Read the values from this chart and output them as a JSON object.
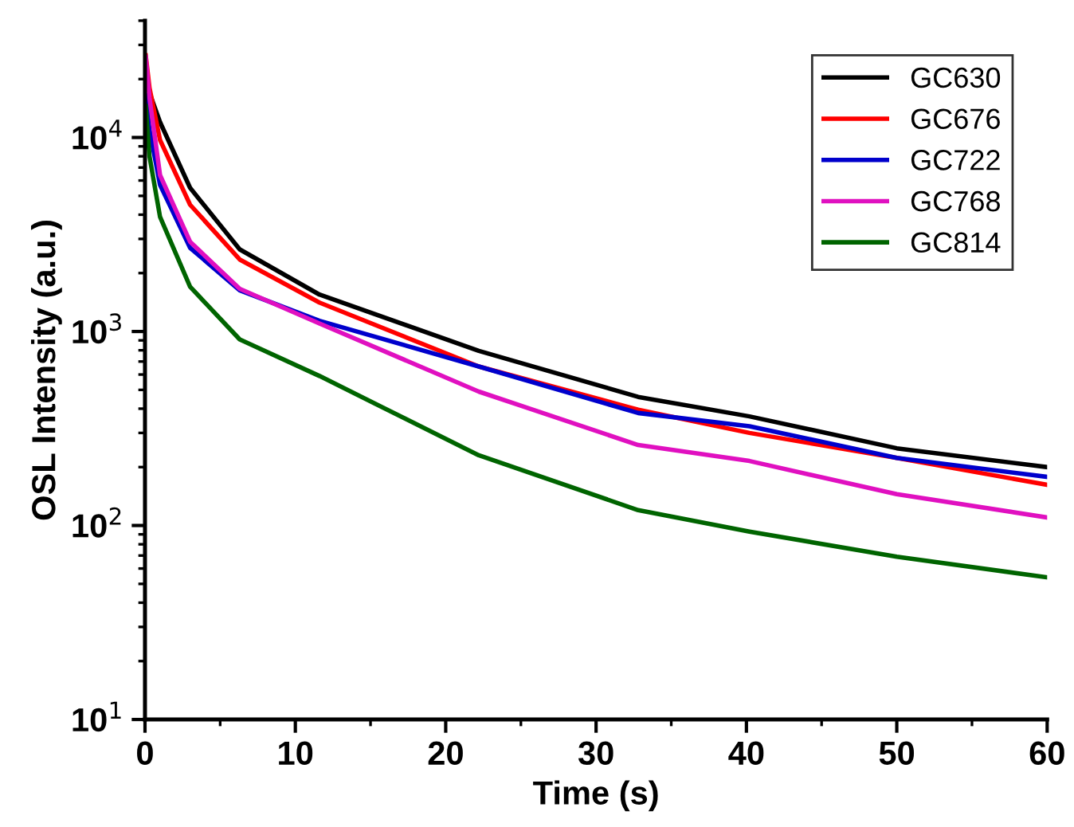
{
  "chart_data": {
    "type": "line",
    "xlabel": "Time (s)",
    "ylabel": "OSL Intensity (a.u.)",
    "log": "y",
    "x": [
      0.05,
      0.3,
      1,
      3,
      6.3,
      11.6,
      22.2,
      32.8,
      40.2,
      50,
      60
    ],
    "xlim": [
      0,
      60
    ],
    "xticks": [
      0,
      10,
      20,
      30,
      40,
      50,
      60
    ],
    "ylim": [
      10,
      40000
    ],
    "yticks": [
      {
        "value": 10,
        "label": "10$^{1}$"
      },
      {
        "value": 100,
        "label": "10$^{2}$"
      },
      {
        "value": 1000,
        "label": "10$^{3}$"
      },
      {
        "value": 10000,
        "label": "10$^{4}$"
      }
    ],
    "grid": false,
    "legend": "top right",
    "marker": "none",
    "line_style": "solid",
    "series": [
      {
        "name": "GC630",
        "color": "#000000",
        "values": [
          20000,
          17000,
          12000,
          5500,
          2650,
          1550,
          795,
          460,
          365,
          250,
          200
        ]
      },
      {
        "name": "GC676",
        "color": "#ff0000",
        "values": [
          26500,
          18000,
          9700,
          4500,
          2350,
          1410,
          660,
          395,
          300,
          223,
          162
        ]
      },
      {
        "name": "GC722",
        "color": "#0000cc",
        "values": [
          16500,
          11000,
          5700,
          2700,
          1630,
          1135,
          660,
          380,
          325,
          223,
          178
        ]
      },
      {
        "name": "GC768",
        "color": "#e010c0",
        "values": [
          26000,
          16000,
          6400,
          2900,
          1660,
          1100,
          490,
          260,
          215,
          145,
          110
        ]
      },
      {
        "name": "GC814",
        "color": "#006400",
        "values": [
          14500,
          8000,
          3900,
          1700,
          910,
          590,
          230,
          120,
          93,
          69,
          54
        ]
      }
    ]
  }
}
